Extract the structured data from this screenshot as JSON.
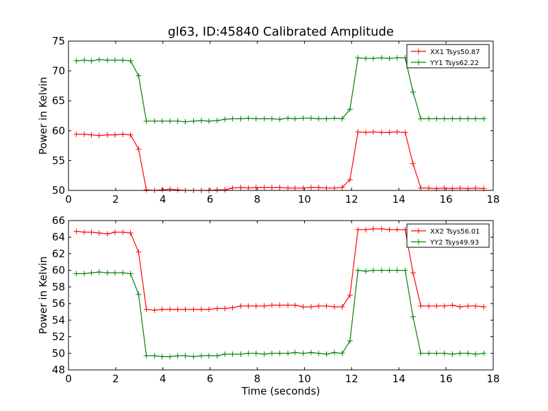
{
  "title": "gl63, ID:45840 Calibrated Amplitude",
  "chart_data": [
    {
      "type": "line",
      "xlabel": "",
      "ylabel": "Power in Kelvin",
      "xlim": [
        0,
        18
      ],
      "ylim": [
        50,
        75
      ],
      "xticks": [
        0,
        2,
        4,
        6,
        8,
        10,
        12,
        14,
        16,
        18
      ],
      "yticks": [
        50,
        55,
        60,
        65,
        70,
        75
      ],
      "legend_position": "top-right",
      "x": [
        0.33,
        0.67,
        0.97,
        1.3,
        1.65,
        1.97,
        2.3,
        2.63,
        2.97,
        3.3,
        3.65,
        3.97,
        4.3,
        4.63,
        4.95,
        5.3,
        5.63,
        5.95,
        6.3,
        6.63,
        6.95,
        7.3,
        7.62,
        7.95,
        8.3,
        8.62,
        8.95,
        9.3,
        9.6,
        9.95,
        10.28,
        10.6,
        10.93,
        11.27,
        11.6,
        11.93,
        12.27,
        12.6,
        12.92,
        13.27,
        13.6,
        13.93,
        14.27,
        14.6,
        14.93,
        15.27,
        15.6,
        15.93,
        16.27,
        16.6,
        16.93,
        17.25,
        17.6
      ],
      "series": [
        {
          "name": "XX1 Tsys50.87",
          "color": "#ff0000",
          "values": [
            59.4,
            59.4,
            59.3,
            59.2,
            59.3,
            59.3,
            59.4,
            59.3,
            56.9,
            50.1,
            50.0,
            50.1,
            50.2,
            50.1,
            50.0,
            50.0,
            50.0,
            50.0,
            50.1,
            50.1,
            50.4,
            50.5,
            50.4,
            50.5,
            50.5,
            50.5,
            50.5,
            50.4,
            50.4,
            50.4,
            50.5,
            50.5,
            50.4,
            50.4,
            50.5,
            51.8,
            59.8,
            59.7,
            59.8,
            59.7,
            59.7,
            59.8,
            59.7,
            54.5,
            50.4,
            50.4,
            50.3,
            50.4,
            50.3,
            50.4,
            50.3,
            50.4,
            50.3
          ]
        },
        {
          "name": "YY1 Tsys62.22",
          "color": "#008000",
          "values": [
            71.7,
            71.8,
            71.7,
            71.9,
            71.8,
            71.8,
            71.8,
            71.7,
            69.2,
            61.6,
            61.6,
            61.6,
            61.6,
            61.6,
            61.5,
            61.6,
            61.7,
            61.6,
            61.7,
            61.9,
            62.0,
            62.0,
            62.1,
            62.0,
            62.0,
            62.0,
            61.9,
            62.1,
            62.0,
            62.1,
            62.1,
            62.0,
            62.0,
            62.1,
            62.0,
            63.6,
            72.2,
            72.1,
            72.1,
            72.2,
            72.1,
            72.2,
            72.2,
            66.5,
            62.0,
            62.0,
            62.0,
            62.0,
            62.0,
            62.0,
            62.0,
            62.0,
            62.0
          ]
        }
      ]
    },
    {
      "type": "line",
      "xlabel": "Time (seconds)",
      "ylabel": "Power in Kelvin",
      "xlim": [
        0,
        18
      ],
      "ylim": [
        48,
        66
      ],
      "xticks": [
        0,
        2,
        4,
        6,
        8,
        10,
        12,
        14,
        16,
        18
      ],
      "yticks": [
        48,
        50,
        52,
        54,
        56,
        58,
        60,
        62,
        64,
        66
      ],
      "legend_position": "top-right",
      "x": [
        0.33,
        0.67,
        0.97,
        1.3,
        1.65,
        1.97,
        2.3,
        2.63,
        2.97,
        3.3,
        3.65,
        3.97,
        4.3,
        4.63,
        4.95,
        5.3,
        5.63,
        5.95,
        6.3,
        6.63,
        6.95,
        7.3,
        7.62,
        7.95,
        8.3,
        8.62,
        8.95,
        9.3,
        9.6,
        9.95,
        10.28,
        10.6,
        10.93,
        11.27,
        11.6,
        11.93,
        12.27,
        12.6,
        12.92,
        13.27,
        13.6,
        13.93,
        14.27,
        14.6,
        14.93,
        15.27,
        15.6,
        15.93,
        16.27,
        16.6,
        16.93,
        17.25,
        17.6
      ],
      "series": [
        {
          "name": "XX2 Tsys56.01",
          "color": "#ff0000",
          "values": [
            64.7,
            64.6,
            64.6,
            64.5,
            64.4,
            64.6,
            64.6,
            64.5,
            62.2,
            55.3,
            55.2,
            55.3,
            55.3,
            55.3,
            55.3,
            55.3,
            55.3,
            55.3,
            55.4,
            55.4,
            55.5,
            55.7,
            55.7,
            55.7,
            55.7,
            55.8,
            55.8,
            55.8,
            55.8,
            55.6,
            55.6,
            55.7,
            55.7,
            55.6,
            55.6,
            57.0,
            64.9,
            64.9,
            65.0,
            65.0,
            64.9,
            64.9,
            64.9,
            59.7,
            55.7,
            55.7,
            55.7,
            55.7,
            55.8,
            55.6,
            55.7,
            55.7,
            55.6
          ]
        },
        {
          "name": "YY2 Tsys49.93",
          "color": "#008000",
          "values": [
            59.6,
            59.6,
            59.7,
            59.8,
            59.7,
            59.7,
            59.7,
            59.6,
            57.1,
            49.7,
            49.7,
            49.6,
            49.6,
            49.7,
            49.7,
            49.6,
            49.7,
            49.7,
            49.7,
            49.9,
            49.9,
            49.9,
            50.0,
            50.0,
            49.9,
            50.0,
            50.0,
            50.0,
            50.1,
            50.0,
            50.1,
            50.0,
            49.9,
            50.1,
            50.0,
            51.5,
            60.0,
            59.9,
            60.0,
            60.0,
            60.0,
            60.0,
            60.0,
            54.4,
            50.0,
            50.0,
            50.0,
            50.0,
            49.9,
            50.0,
            50.0,
            49.9,
            50.0
          ]
        }
      ]
    }
  ]
}
